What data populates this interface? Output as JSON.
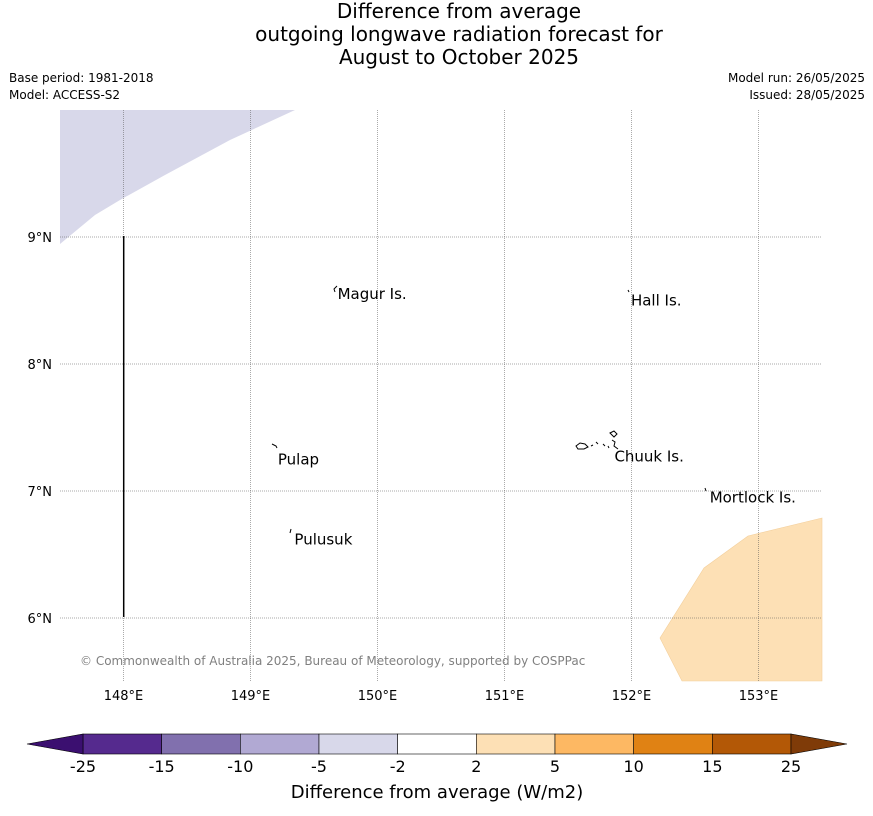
{
  "title": {
    "line1": "Difference from average",
    "line2": "outgoing longwave radiation forecast for",
    "line3": "August to October 2025"
  },
  "meta": {
    "base_period": "Base period: 1981-2018",
    "model": "Model: ACCESS-S2",
    "model_run": "Model run: 26/05/2025",
    "issued": "Issued: 28/05/2025"
  },
  "map": {
    "lon_range": [
      147.5,
      153.5
    ],
    "lat_range": [
      5.5,
      10.0
    ],
    "lon_ticks": [
      "148°E",
      "149°E",
      "150°E",
      "151°E",
      "152°E",
      "153°E"
    ],
    "lat_ticks": [
      "9°N",
      "8°N",
      "7°N",
      "6°N"
    ],
    "copyright": "© Commonwealth of Australia 2025, Bureau of Meteorology, supported by COSPPac",
    "places": [
      {
        "name": "Magur Is.",
        "lon": 149.67,
        "lat": 8.55
      },
      {
        "name": "Hall Is.",
        "lon": 151.98,
        "lat": 8.5
      },
      {
        "name": "Pulap",
        "lon": 149.2,
        "lat": 7.25
      },
      {
        "name": "Chuuk Is.",
        "lon": 151.85,
        "lat": 7.27
      },
      {
        "name": "Mortlock Is.",
        "lon": 152.6,
        "lat": 6.95
      },
      {
        "name": "Pulusuk",
        "lon": 149.33,
        "lat": 6.62
      }
    ],
    "colors": {
      "negative_region": "#d8d8ea",
      "positive_region": "#fde0b5",
      "boundary_line": "#000000"
    }
  },
  "colorbar": {
    "label": "Difference from average (W/m2)",
    "ticks": [
      "-25",
      "-15",
      "-10",
      "-5",
      "-2",
      "2",
      "5",
      "10",
      "15",
      "25"
    ],
    "colors": [
      "#552a8e",
      "#8170ae",
      "#b1a9d3",
      "#d8d8ea",
      "#ffffff",
      "#fde0b5",
      "#fdb863",
      "#e08214",
      "#b35806"
    ],
    "under_color": "#3b0f70",
    "over_color": "#7f3b08"
  }
}
